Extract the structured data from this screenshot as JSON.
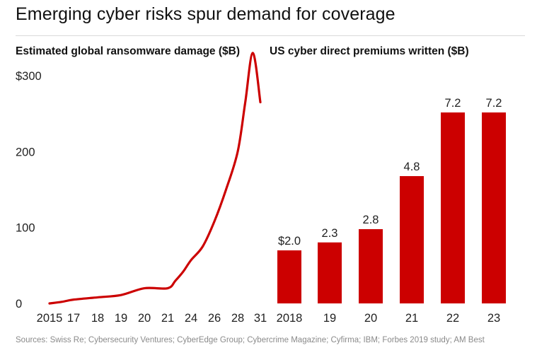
{
  "title": "Emerging cyber risks spur demand for coverage",
  "source": "Sources: Swiss Re; Cybersecurity Ventures; CyberEdge Group; Cybercrime Magazine; Cyfirma; IBM; Forbes 2019 study; AM Best",
  "colors": {
    "accent": "#cc0000",
    "text": "#222222",
    "source": "#8a8a8a",
    "rule": "#d9d9d9"
  },
  "chart_data": [
    {
      "type": "line",
      "title": "Estimated global ransomware damage ($B)",
      "x": [
        2015,
        2016,
        2017,
        2018,
        2019,
        2020,
        2021,
        2022,
        2023,
        2024,
        2025,
        2026,
        2027,
        2028,
        2029,
        2030,
        2031
      ],
      "y": [
        0,
        2,
        5,
        8,
        11,
        20,
        20,
        30,
        42,
        57,
        75,
        108,
        150,
        200,
        265,
        330,
        265
      ],
      "xtick_values": [
        2015,
        2017,
        2018,
        2019,
        2020,
        2021,
        2024,
        2026,
        2028,
        2031
      ],
      "xtick_labels": [
        "2015",
        "17",
        "18",
        "19",
        "20",
        "21",
        "24",
        "26",
        "28",
        "31"
      ],
      "ytick_values": [
        0,
        100,
        200,
        300
      ],
      "ytick_labels": [
        "0",
        "100",
        "200",
        "$300"
      ],
      "ylim": [
        0,
        300
      ],
      "grid": false,
      "color": "#cc0000"
    },
    {
      "type": "bar",
      "title": "US cyber direct premiums written ($B)",
      "categories": [
        "2018",
        "19",
        "20",
        "21",
        "22",
        "23"
      ],
      "values": [
        2.0,
        2.3,
        2.8,
        4.8,
        7.2,
        7.2
      ],
      "data_labels": [
        "$2.0",
        "2.3",
        "2.8",
        "4.8",
        "7.2",
        "7.2"
      ],
      "grid": false,
      "color": "#cc0000"
    }
  ]
}
